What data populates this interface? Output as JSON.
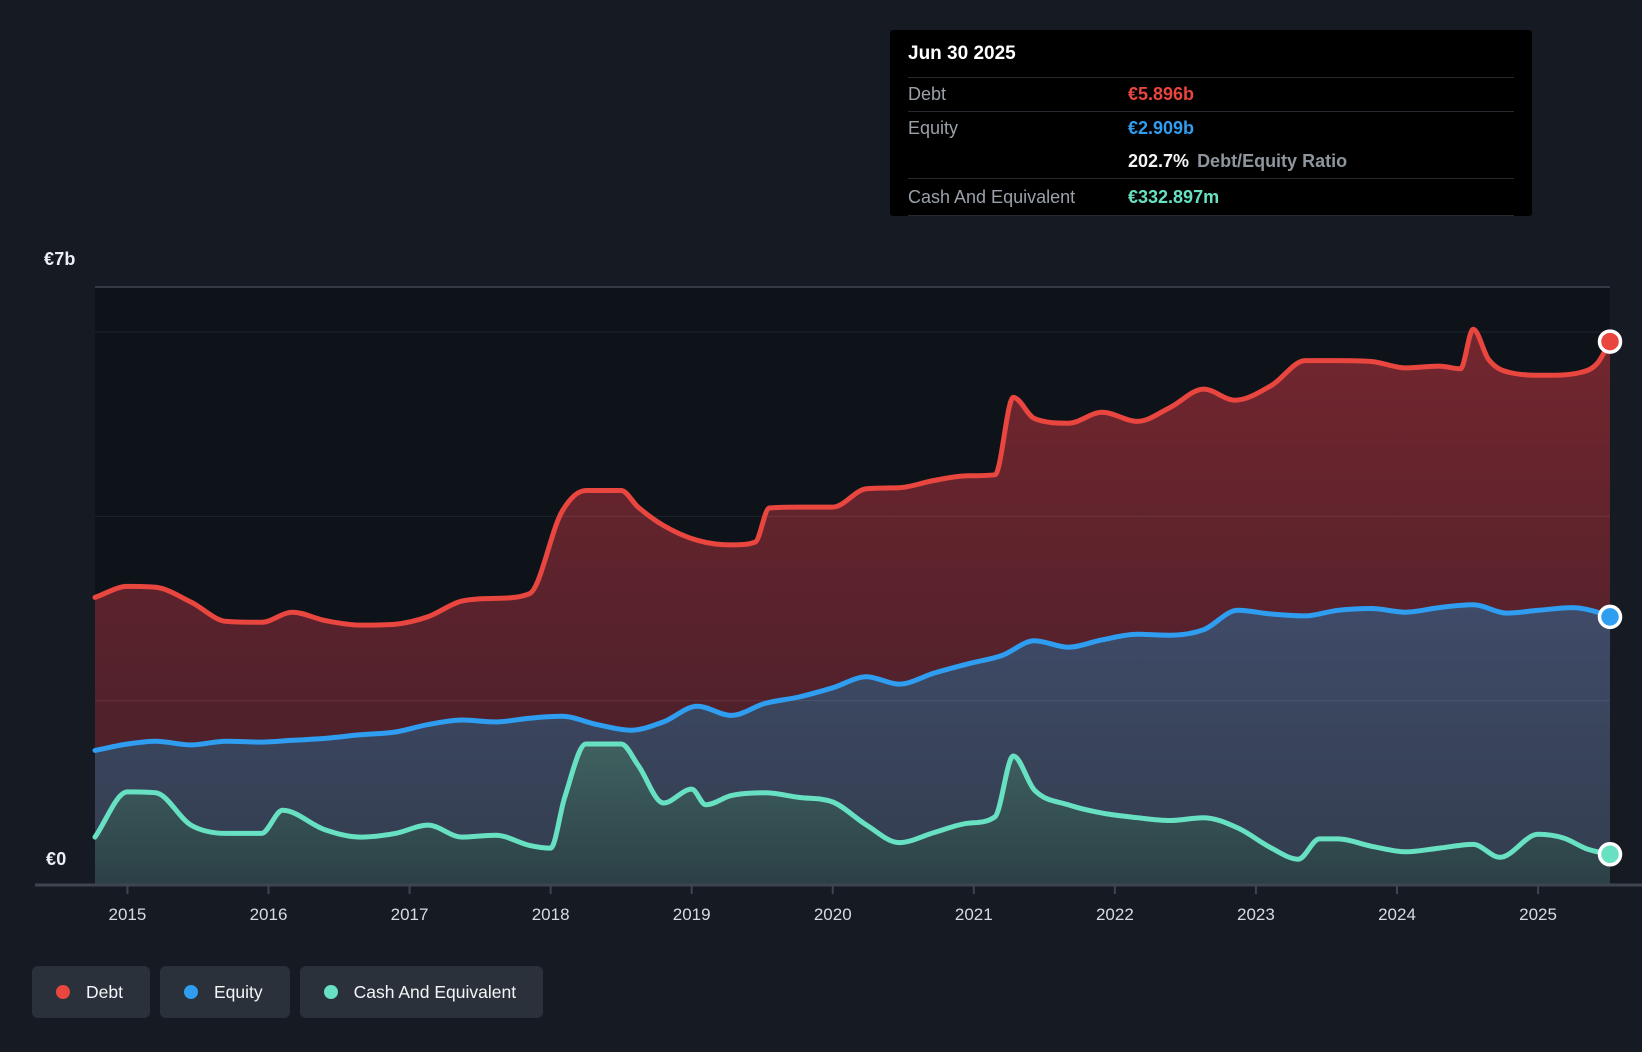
{
  "colors": {
    "debt": "#e8463f",
    "equity": "#2f9df0",
    "cash": "#67e1c2",
    "debt_fill_top": "#73262e",
    "debt_fill_bottom": "#411f2a",
    "equity_fill_top": "#3f4b68",
    "equity_fill_bottom": "#333d4f",
    "cash_fill_top": "#406160",
    "cash_fill_bottom": "#2b4046",
    "page_bg": "#161b23",
    "plot_bg": "#0e1319",
    "gridline": "rgba(255,255,255,0.08)",
    "plot_top_border": "#343a44",
    "axis_line": "#3e4550",
    "tick": "#3e4550",
    "year_label": "#d7dbe1"
  },
  "tooltip": {
    "date": "Jun 30 2025",
    "debt_label": "Debt",
    "debt_value": "€5.896b",
    "equity_label": "Equity",
    "equity_value": "€2.909b",
    "ratio_value": "202.7%",
    "ratio_label": "Debt/Equity Ratio",
    "cash_label": "Cash And Equivalent",
    "cash_value": "€332.897m"
  },
  "legend": {
    "debt": "Debt",
    "equity": "Equity",
    "cash": "Cash And Equivalent"
  },
  "axis": {
    "y_top_label": "€7b",
    "y_zero_label": "€0",
    "x_ticks": [
      2015,
      2016,
      2017,
      2018,
      2019,
      2020,
      2021,
      2022,
      2023,
      2024,
      2025
    ]
  },
  "chart_data": {
    "type": "area",
    "title": "Debt to Equity History (quarterly)",
    "unit": "€ billions",
    "xlim": [
      2014.77,
      2025.51
    ],
    "ylim": [
      0,
      7
    ],
    "gridline_values": [
      6,
      4,
      2
    ],
    "legend_position": "bottom-left",
    "series": [
      {
        "name": "Debt",
        "color_key": "debt",
        "last_point_label": "€5.896b",
        "points": [
          [
            2014.77,
            3.12
          ],
          [
            2015.0,
            3.24
          ],
          [
            2015.2,
            3.23
          ],
          [
            2015.45,
            3.07
          ],
          [
            2015.7,
            2.86
          ],
          [
            2015.95,
            2.85
          ],
          [
            2016.17,
            2.96
          ],
          [
            2016.4,
            2.87
          ],
          [
            2016.65,
            2.82
          ],
          [
            2016.9,
            2.83
          ],
          [
            2017.13,
            2.91
          ],
          [
            2017.37,
            3.08
          ],
          [
            2017.61,
            3.11
          ],
          [
            2017.85,
            3.16
          ],
          [
            2018.08,
            4.05
          ],
          [
            2018.25,
            4.28
          ],
          [
            2018.5,
            4.28
          ],
          [
            2018.62,
            4.1
          ],
          [
            2018.8,
            3.9
          ],
          [
            2019.04,
            3.74
          ],
          [
            2019.28,
            3.69
          ],
          [
            2019.45,
            3.72
          ],
          [
            2019.55,
            4.09
          ],
          [
            2019.76,
            4.1
          ],
          [
            2020.0,
            4.1
          ],
          [
            2020.24,
            4.3
          ],
          [
            2020.47,
            4.31
          ],
          [
            2020.72,
            4.39
          ],
          [
            2020.96,
            4.44
          ],
          [
            2021.15,
            4.45
          ],
          [
            2021.28,
            5.29
          ],
          [
            2021.43,
            5.06
          ],
          [
            2021.67,
            5.01
          ],
          [
            2021.91,
            5.13
          ],
          [
            2022.16,
            5.03
          ],
          [
            2022.39,
            5.18
          ],
          [
            2022.63,
            5.38
          ],
          [
            2022.85,
            5.26
          ],
          [
            2023.11,
            5.42
          ],
          [
            2023.35,
            5.69
          ],
          [
            2023.58,
            5.69
          ],
          [
            2023.82,
            5.68
          ],
          [
            2024.06,
            5.61
          ],
          [
            2024.3,
            5.63
          ],
          [
            2024.45,
            5.6
          ],
          [
            2024.54,
            6.03
          ],
          [
            2024.65,
            5.7
          ],
          [
            2024.8,
            5.56
          ],
          [
            2025.05,
            5.53
          ],
          [
            2025.3,
            5.56
          ],
          [
            2025.42,
            5.66
          ],
          [
            2025.51,
            5.896
          ]
        ]
      },
      {
        "name": "Equity",
        "color_key": "equity",
        "last_point_label": "€2.909b",
        "points": [
          [
            2014.77,
            1.46
          ],
          [
            2015.0,
            1.53
          ],
          [
            2015.2,
            1.56
          ],
          [
            2015.45,
            1.52
          ],
          [
            2015.7,
            1.56
          ],
          [
            2015.95,
            1.55
          ],
          [
            2016.17,
            1.57
          ],
          [
            2016.4,
            1.59
          ],
          [
            2016.65,
            1.63
          ],
          [
            2016.9,
            1.66
          ],
          [
            2017.13,
            1.74
          ],
          [
            2017.37,
            1.79
          ],
          [
            2017.61,
            1.77
          ],
          [
            2017.85,
            1.81
          ],
          [
            2018.08,
            1.83
          ],
          [
            2018.33,
            1.74
          ],
          [
            2018.57,
            1.68
          ],
          [
            2018.8,
            1.77
          ],
          [
            2019.04,
            1.94
          ],
          [
            2019.28,
            1.84
          ],
          [
            2019.52,
            1.97
          ],
          [
            2019.76,
            2.04
          ],
          [
            2020.0,
            2.14
          ],
          [
            2020.24,
            2.26
          ],
          [
            2020.47,
            2.18
          ],
          [
            2020.72,
            2.3
          ],
          [
            2020.96,
            2.4
          ],
          [
            2021.2,
            2.49
          ],
          [
            2021.43,
            2.65
          ],
          [
            2021.67,
            2.58
          ],
          [
            2021.91,
            2.66
          ],
          [
            2022.16,
            2.72
          ],
          [
            2022.39,
            2.71
          ],
          [
            2022.63,
            2.77
          ],
          [
            2022.87,
            2.98
          ],
          [
            2023.11,
            2.94
          ],
          [
            2023.35,
            2.92
          ],
          [
            2023.58,
            2.98
          ],
          [
            2023.82,
            3.0
          ],
          [
            2024.06,
            2.96
          ],
          [
            2024.3,
            3.01
          ],
          [
            2024.54,
            3.04
          ],
          [
            2024.78,
            2.95
          ],
          [
            2025.0,
            2.98
          ],
          [
            2025.25,
            3.01
          ],
          [
            2025.4,
            2.97
          ],
          [
            2025.51,
            2.909
          ]
        ]
      },
      {
        "name": "Cash And Equivalent",
        "color_key": "cash",
        "last_point_label": "€332.897m",
        "points": [
          [
            2014.77,
            0.52
          ],
          [
            2015.0,
            1.01
          ],
          [
            2015.2,
            1.0
          ],
          [
            2015.45,
            0.65
          ],
          [
            2015.7,
            0.56
          ],
          [
            2015.95,
            0.56
          ],
          [
            2016.1,
            0.81
          ],
          [
            2016.4,
            0.6
          ],
          [
            2016.65,
            0.52
          ],
          [
            2016.9,
            0.56
          ],
          [
            2017.13,
            0.65
          ],
          [
            2017.37,
            0.52
          ],
          [
            2017.61,
            0.54
          ],
          [
            2017.85,
            0.43
          ],
          [
            2018.0,
            0.4
          ],
          [
            2018.1,
            0.95
          ],
          [
            2018.25,
            1.53
          ],
          [
            2018.5,
            1.53
          ],
          [
            2018.62,
            1.3
          ],
          [
            2018.8,
            0.89
          ],
          [
            2019.0,
            1.04
          ],
          [
            2019.1,
            0.87
          ],
          [
            2019.28,
            0.97
          ],
          [
            2019.52,
            1.0
          ],
          [
            2019.76,
            0.95
          ],
          [
            2020.0,
            0.9
          ],
          [
            2020.24,
            0.65
          ],
          [
            2020.47,
            0.46
          ],
          [
            2020.72,
            0.57
          ],
          [
            2020.96,
            0.67
          ],
          [
            2021.15,
            0.74
          ],
          [
            2021.28,
            1.4
          ],
          [
            2021.43,
            1.03
          ],
          [
            2021.67,
            0.87
          ],
          [
            2021.91,
            0.78
          ],
          [
            2022.16,
            0.73
          ],
          [
            2022.39,
            0.7
          ],
          [
            2022.63,
            0.73
          ],
          [
            2022.87,
            0.62
          ],
          [
            2023.11,
            0.4
          ],
          [
            2023.3,
            0.28
          ],
          [
            2023.45,
            0.5
          ],
          [
            2023.58,
            0.5
          ],
          [
            2023.82,
            0.42
          ],
          [
            2024.06,
            0.36
          ],
          [
            2024.3,
            0.4
          ],
          [
            2024.54,
            0.44
          ],
          [
            2024.73,
            0.3
          ],
          [
            2025.0,
            0.55
          ],
          [
            2025.18,
            0.51
          ],
          [
            2025.35,
            0.39
          ],
          [
            2025.51,
            0.333
          ]
        ]
      }
    ]
  }
}
